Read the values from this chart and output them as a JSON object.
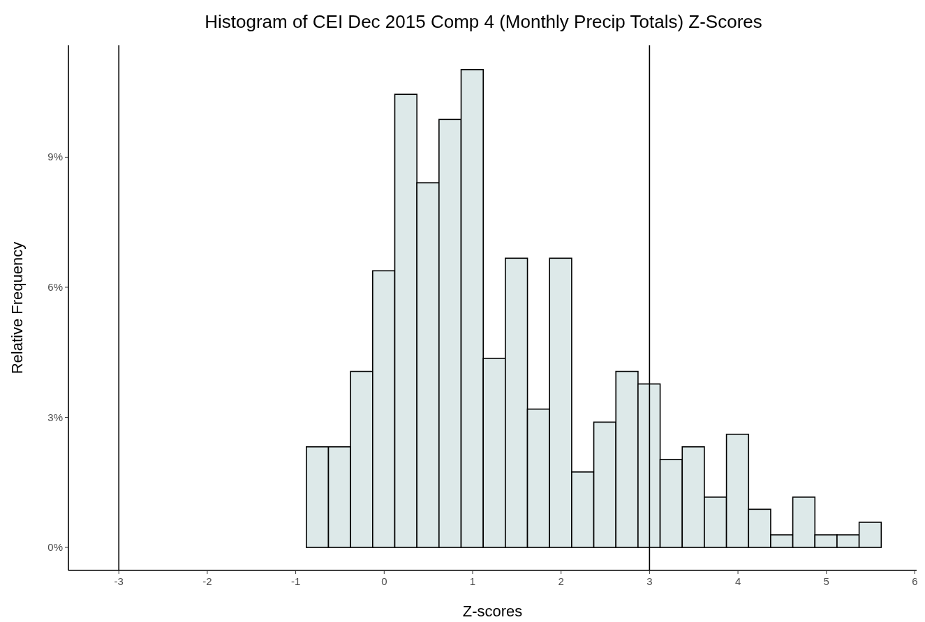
{
  "chart_data": {
    "type": "histogram",
    "title": "Histogram of CEI Dec 2015 Comp 4 (Monthly Precip Totals) Z-Scores",
    "xlabel": "Z-scores",
    "ylabel": "Relative Frequency",
    "bins": [
      -3.13,
      -2.88,
      -2.63,
      -2.38,
      -2.13,
      -1.88,
      -1.63,
      -1.38,
      -1.13,
      -0.88,
      -0.63,
      -0.38,
      -0.13,
      0.12,
      0.37,
      0.62,
      0.87,
      1.12,
      1.37,
      1.62,
      1.87,
      2.12,
      2.37,
      2.62,
      2.87,
      3.12,
      3.37,
      3.62,
      3.87,
      4.12,
      4.37,
      4.62,
      4.87,
      5.12,
      5.37,
      5.62
    ],
    "values": [
      0,
      0,
      0,
      0,
      0,
      0,
      0,
      0,
      0,
      2.32,
      2.32,
      4.06,
      6.38,
      10.45,
      8.41,
      9.87,
      11.02,
      4.36,
      6.67,
      3.19,
      6.67,
      1.74,
      2.89,
      4.06,
      3.77,
      2.03,
      2.32,
      1.16,
      2.61,
      0.88,
      0.29,
      1.16,
      0.29,
      0.29,
      0.58
    ],
    "color": "#dde9e9",
    "xlim": [
      -3.57,
      6.02
    ],
    "xticks": [
      -3,
      -2,
      -1,
      0,
      1,
      2,
      3,
      4,
      5,
      6
    ],
    "ylim": [
      -0.53,
      11.58
    ],
    "yticks": [
      {
        "value": 0,
        "label": "0%"
      },
      {
        "value": 3,
        "label": "3%"
      },
      {
        "value": 6,
        "label": "6%"
      },
      {
        "value": 9,
        "label": "9%"
      }
    ],
    "ref_lines": [
      {
        "axis": "x",
        "value": -3,
        "color": "#000000"
      },
      {
        "axis": "x",
        "value": 3,
        "color": "#000000"
      }
    ],
    "grid": false
  }
}
